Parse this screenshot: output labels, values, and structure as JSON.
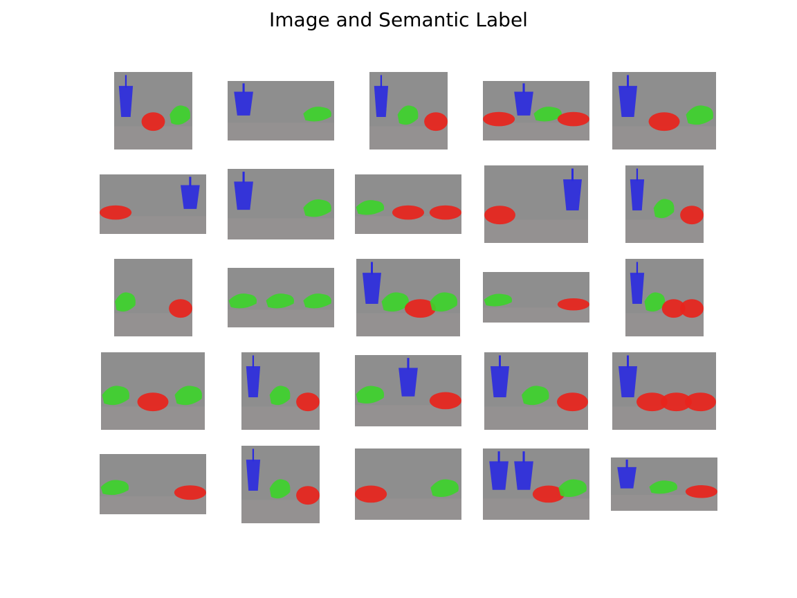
{
  "figure": {
    "title": "Image and Semantic Label"
  },
  "legend_colors": {
    "sandwich": "#e8241c",
    "fries": "#3cd42a",
    "drink": "#2a2ae0",
    "background": "#8e8e8e"
  },
  "tiles": [
    {
      "row": 0,
      "col": 0,
      "objects": [
        "drink",
        "sandwich",
        "fries"
      ]
    },
    {
      "row": 0,
      "col": 1,
      "objects": [
        "drink",
        "fries"
      ]
    },
    {
      "row": 0,
      "col": 2,
      "objects": [
        "drink",
        "fries",
        "sandwich"
      ]
    },
    {
      "row": 0,
      "col": 3,
      "objects": [
        "sandwich",
        "drink",
        "fries",
        "sandwich"
      ]
    },
    {
      "row": 0,
      "col": 4,
      "objects": [
        "drink",
        "sandwich",
        "fries"
      ]
    },
    {
      "row": 1,
      "col": 0,
      "objects": [
        "sandwich",
        "drink"
      ]
    },
    {
      "row": 1,
      "col": 1,
      "objects": [
        "drink",
        "fries"
      ]
    },
    {
      "row": 1,
      "col": 2,
      "objects": [
        "fries",
        "sandwich",
        "sandwich"
      ]
    },
    {
      "row": 1,
      "col": 3,
      "objects": [
        "sandwich",
        "drink"
      ]
    },
    {
      "row": 1,
      "col": 4,
      "objects": [
        "drink",
        "fries",
        "sandwich"
      ]
    },
    {
      "row": 2,
      "col": 0,
      "objects": [
        "fries",
        "sandwich"
      ]
    },
    {
      "row": 2,
      "col": 1,
      "objects": [
        "fries",
        "fries",
        "fries"
      ]
    },
    {
      "row": 2,
      "col": 2,
      "objects": [
        "drink",
        "fries",
        "sandwich",
        "fries"
      ]
    },
    {
      "row": 2,
      "col": 3,
      "objects": [
        "fries",
        "sandwich"
      ]
    },
    {
      "row": 2,
      "col": 4,
      "objects": [
        "drink",
        "fries",
        "sandwich",
        "sandwich"
      ]
    },
    {
      "row": 3,
      "col": 0,
      "objects": [
        "fries",
        "sandwich",
        "fries"
      ]
    },
    {
      "row": 3,
      "col": 1,
      "objects": [
        "drink",
        "fries",
        "sandwich"
      ]
    },
    {
      "row": 3,
      "col": 2,
      "objects": [
        "fries",
        "drink",
        "sandwich"
      ]
    },
    {
      "row": 3,
      "col": 3,
      "objects": [
        "drink",
        "fries",
        "sandwich"
      ]
    },
    {
      "row": 3,
      "col": 4,
      "objects": [
        "drink",
        "sandwich",
        "sandwich",
        "sandwich"
      ]
    },
    {
      "row": 4,
      "col": 0,
      "objects": [
        "fries",
        "sandwich"
      ]
    },
    {
      "row": 4,
      "col": 1,
      "objects": [
        "drink",
        "fries",
        "sandwich"
      ]
    },
    {
      "row": 4,
      "col": 2,
      "objects": [
        "sandwich",
        "fries"
      ]
    },
    {
      "row": 4,
      "col": 3,
      "objects": [
        "drink",
        "drink",
        "sandwich",
        "fries"
      ]
    },
    {
      "row": 4,
      "col": 4,
      "objects": [
        "drink",
        "fries",
        "sandwich"
      ]
    }
  ]
}
